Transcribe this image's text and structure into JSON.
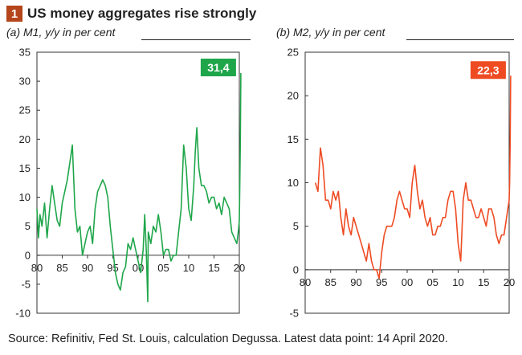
{
  "header": {
    "number": "1",
    "title": "US money aggregates rise strongly"
  },
  "footer": {
    "source": "Source: Refinitiv, Fed St. Louis, calculation Degussa. Latest data point: 14 April 2020."
  },
  "colors": {
    "m1": "#1fa64a",
    "m2": "#ee4b23",
    "badge": "#b5451b"
  },
  "chart_data": [
    {
      "type": "line",
      "subtitle": "(a) M1, y/y in per cent",
      "xlim": [
        1980,
        2020
      ],
      "ylim": [
        -10,
        35
      ],
      "xticks": [
        1980,
        1985,
        1990,
        1995,
        2000,
        2005,
        2010,
        2015,
        2020
      ],
      "xtick_labels": [
        "80",
        "85",
        "90",
        "95",
        "00",
        "05",
        "10",
        "15",
        "20"
      ],
      "yticks": [
        -10,
        -5,
        0,
        5,
        10,
        15,
        20,
        25,
        30,
        35
      ],
      "grid": false,
      "annotation": {
        "label": "31,4",
        "x": 2020.3,
        "y": 31.4
      },
      "series": [
        {
          "color": "#1fa64a",
          "x": [
            1980,
            1980.3,
            1980.6,
            1981,
            1981.5,
            1982,
            1982.5,
            1983,
            1983.5,
            1984,
            1984.5,
            1985,
            1985.5,
            1986,
            1986.5,
            1987,
            1987.5,
            1988,
            1988.5,
            1989,
            1989.5,
            1990,
            1990.5,
            1991,
            1991.5,
            1992,
            1992.5,
            1993,
            1993.5,
            1994,
            1994.5,
            1995,
            1995.5,
            1996,
            1996.5,
            1997,
            1997.5,
            1998,
            1998.5,
            1999,
            1999.5,
            2000,
            2000.5,
            2001,
            2001.3,
            2001.6,
            2001.9,
            2002,
            2002.5,
            2003,
            2003.5,
            2004,
            2004.5,
            2005,
            2005.5,
            2006,
            2006.5,
            2007,
            2007.5,
            2008,
            2008.5,
            2009,
            2009.5,
            2010,
            2010.5,
            2011,
            2011.3,
            2011.6,
            2012,
            2012.5,
            2013,
            2013.5,
            2014,
            2014.5,
            2015,
            2015.5,
            2016,
            2016.5,
            2017,
            2017.5,
            2018,
            2018.5,
            2019,
            2019.5,
            2019.8,
            2020,
            2020.1,
            2020.2,
            2020.3
          ],
          "y": [
            8,
            3,
            7,
            5,
            9,
            3,
            8,
            12,
            9,
            6,
            5,
            9,
            11,
            13,
            16,
            19,
            8,
            4,
            5,
            0,
            2,
            4,
            5,
            2,
            8,
            11,
            12,
            13,
            12,
            10,
            5,
            1,
            -3,
            -5,
            -6,
            -3,
            -2,
            2,
            1,
            3,
            1,
            -1,
            -3,
            1,
            7,
            1,
            -8,
            4,
            2,
            5,
            4,
            7,
            4,
            0,
            1,
            1,
            -1,
            0,
            0,
            4,
            8,
            19,
            15,
            8,
            6,
            12,
            18,
            22,
            15,
            12,
            12,
            11,
            9,
            10,
            10,
            8,
            9,
            7,
            10,
            9,
            8,
            4,
            3,
            2,
            4,
            6,
            12,
            20,
            31.4
          ]
        }
      ]
    },
    {
      "type": "line",
      "subtitle": "(b) M2, y/y in per cent",
      "xlim": [
        1980,
        2020
      ],
      "ylim": [
        -5,
        25
      ],
      "xticks": [
        1980,
        1985,
        1990,
        1995,
        2000,
        2005,
        2010,
        2015,
        2020
      ],
      "xtick_labels": [
        "80",
        "85",
        "90",
        "95",
        "00",
        "05",
        "10",
        "15",
        "20"
      ],
      "yticks": [
        -5,
        0,
        5,
        10,
        15,
        20,
        25
      ],
      "grid": false,
      "annotation": {
        "label": "22,3",
        "x": 2020.3,
        "y": 22.3
      },
      "series": [
        {
          "color": "#ee4b23",
          "x": [
            1982,
            1982.5,
            1983,
            1983.5,
            1984,
            1984.5,
            1985,
            1985.5,
            1986,
            1986.5,
            1987,
            1987.5,
            1988,
            1988.5,
            1989,
            1989.5,
            1990,
            1990.5,
            1991,
            1991.5,
            1992,
            1992.5,
            1993,
            1993.5,
            1994,
            1994.5,
            1995,
            1995.5,
            1996,
            1996.5,
            1997,
            1997.5,
            1998,
            1998.5,
            1999,
            1999.5,
            2000,
            2000.5,
            2001,
            2001.5,
            2002,
            2002.5,
            2003,
            2003.5,
            2004,
            2004.5,
            2005,
            2005.5,
            2006,
            2006.5,
            2007,
            2007.5,
            2008,
            2008.5,
            2009,
            2009.5,
            2010,
            2010.5,
            2011,
            2011.5,
            2012,
            2012.5,
            2013,
            2013.5,
            2014,
            2014.5,
            2015,
            2015.5,
            2016,
            2016.5,
            2017,
            2017.5,
            2018,
            2018.5,
            2019,
            2019.5,
            2020,
            2020.1,
            2020.2,
            2020.3
          ],
          "y": [
            10,
            9,
            14,
            12,
            8,
            8,
            7,
            9,
            8,
            9,
            6,
            4,
            7,
            5,
            4,
            6,
            5,
            4,
            3,
            2,
            1,
            3,
            1,
            0,
            0,
            -1,
            2,
            4,
            5,
            5,
            5,
            6,
            8,
            9,
            8,
            7,
            7,
            6,
            10,
            12,
            9,
            7,
            8,
            6,
            5,
            6,
            4,
            4,
            5,
            5,
            6,
            6,
            8,
            9,
            9,
            7,
            3,
            1,
            8,
            10,
            8,
            8,
            7,
            6,
            6,
            7,
            6,
            5,
            7,
            7,
            6,
            4,
            3,
            4,
            4,
            6,
            8,
            10,
            15,
            22.3
          ]
        }
      ]
    }
  ]
}
